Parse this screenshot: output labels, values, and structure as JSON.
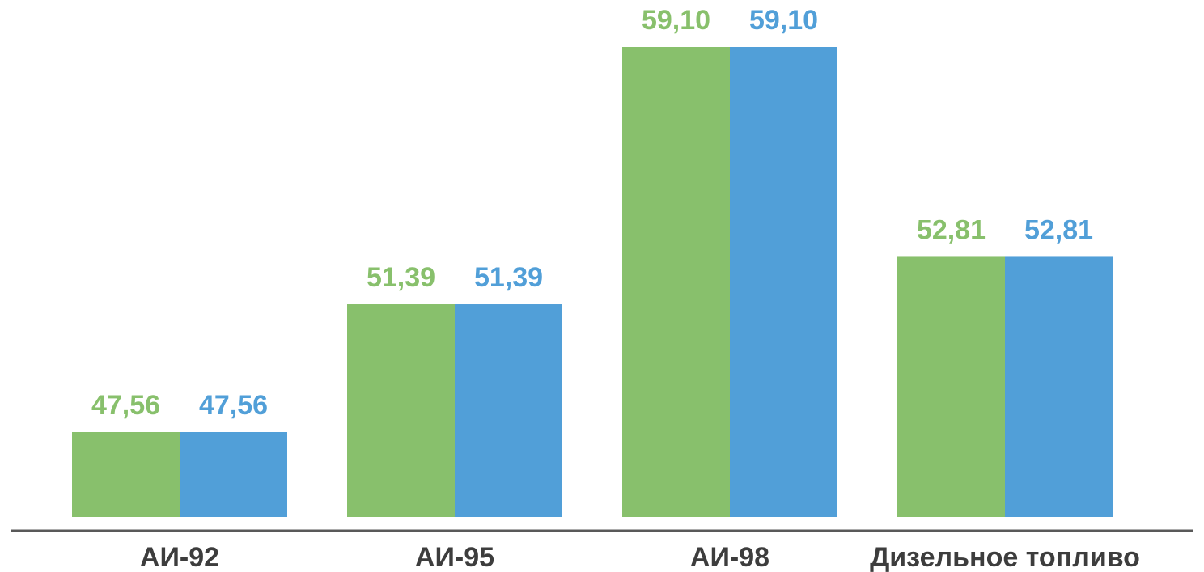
{
  "chart_data": {
    "type": "bar",
    "title": "",
    "xlabel": "",
    "ylabel": "",
    "categories": [
      "АИ-92",
      "АИ-95",
      "АИ-98",
      "Дизельное топливо"
    ],
    "series": [
      {
        "color": "#88c06c",
        "values": [
          47.56,
          51.39,
          59.1,
          52.81
        ],
        "labels": [
          "47,56",
          "51,39",
          "59,10",
          "52,81"
        ]
      },
      {
        "color": "#519fd8",
        "values": [
          47.56,
          51.39,
          59.1,
          52.81
        ],
        "labels": [
          "47,56",
          "51,39",
          "59,10",
          "52,81"
        ]
      }
    ],
    "ylim": [
      40,
      60
    ],
    "grid": false,
    "legend": "none",
    "axis_color": "#595959"
  }
}
